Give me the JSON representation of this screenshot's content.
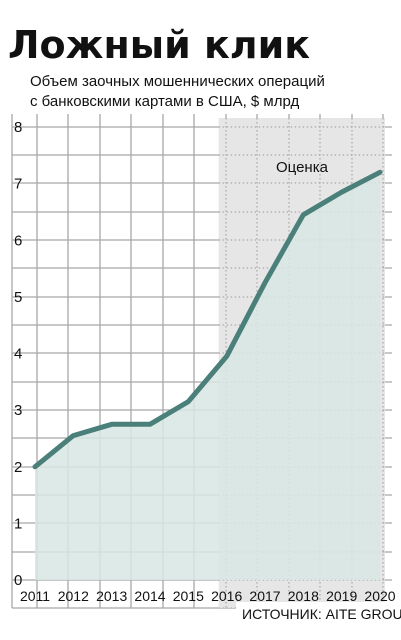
{
  "chart_data": {
    "type": "area",
    "title": "Ложный клик",
    "subtitle_lines": [
      "Объем заочных мошеннических операций",
      "с банковскими картами в США, $ млрд"
    ],
    "x": [
      "2011",
      "2012",
      "2013",
      "2014",
      "2015",
      "2016",
      "2017",
      "2018",
      "2019",
      "2020"
    ],
    "y_ticks": [
      "0",
      "1",
      "2",
      "3",
      "4",
      "5",
      "6",
      "7",
      "8"
    ],
    "ylim": [
      0,
      8
    ],
    "values": [
      2.0,
      2.55,
      2.75,
      2.75,
      3.15,
      3.95,
      5.25,
      6.45,
      6.85,
      7.2
    ],
    "forecast_label": "Оценка",
    "forecast_from": "2016",
    "source": "ИСТОЧНИК: AITE GROUP",
    "grid": true,
    "colors": {
      "line": "#4a7f7a",
      "area": "#d8e6e4",
      "forecast_band": "#e6e6e6",
      "grid": "#a8a8a8",
      "text": "#111111"
    }
  }
}
